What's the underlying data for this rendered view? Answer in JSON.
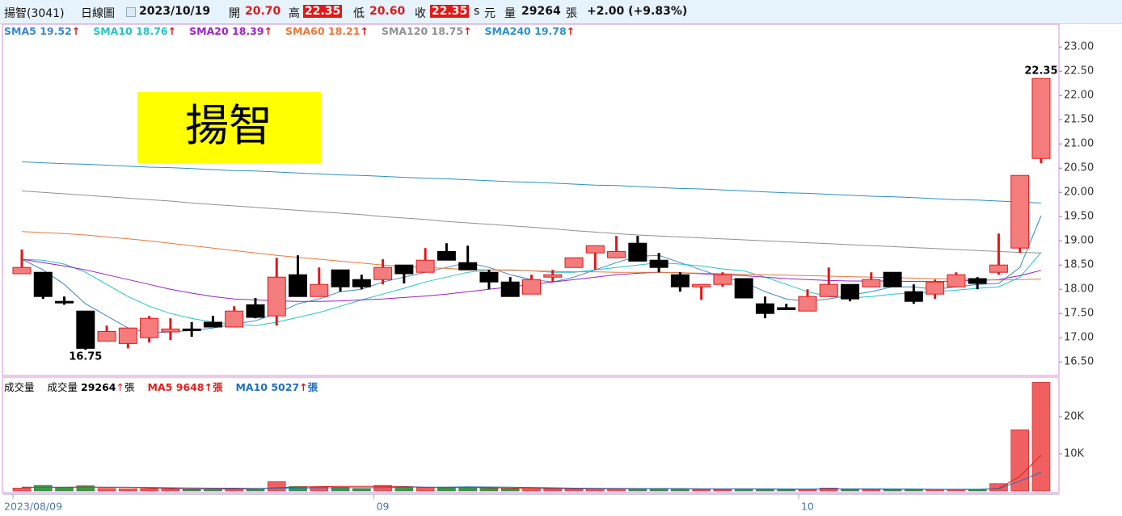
{
  "header": {
    "name": "揚智(3041)",
    "chart_kind": "日線圖",
    "date": "2023/10/19",
    "open_label": "開",
    "open": "20.70",
    "high_label": "高",
    "high": "22.35",
    "low_label": "低",
    "low": "20.60",
    "close_label": "收",
    "close": "22.35",
    "unit_s": "s",
    "unit": "元",
    "volume_label": "量",
    "volume": "29264",
    "volume_unit": "張",
    "change": "+2.00 (+9.83%)"
  },
  "chart_data": [
    {
      "type": "candlestick",
      "annotation": "揚智",
      "legend_arrow": "↑",
      "up_color": "#f47c7c",
      "up_edge": "#e01818",
      "down_color": "#000000",
      "categories": [
        "2023/08/09",
        null,
        null,
        null,
        null,
        null,
        null,
        null,
        null,
        null,
        null,
        null,
        null,
        null,
        null,
        null,
        null,
        "09",
        null,
        null,
        null,
        null,
        null,
        null,
        null,
        null,
        null,
        null,
        null,
        null,
        null,
        null,
        null,
        null,
        null,
        null,
        null,
        "10",
        null,
        null,
        null,
        null,
        null,
        null,
        null,
        null,
        null,
        null,
        null
      ],
      "open": [
        18.32,
        18.35,
        17.75,
        17.55,
        16.93,
        16.88,
        17.0,
        17.12,
        17.18,
        17.32,
        17.22,
        17.68,
        17.45,
        18.3,
        17.85,
        18.4,
        18.2,
        18.2,
        18.5,
        18.35,
        18.78,
        18.55,
        18.35,
        18.15,
        17.9,
        18.25,
        18.45,
        18.75,
        18.65,
        18.95,
        18.6,
        18.3,
        18.05,
        18.1,
        18.22,
        17.7,
        17.62,
        17.55,
        17.85,
        18.1,
        18.05,
        18.35,
        17.95,
        17.9,
        18.05,
        18.22,
        18.35,
        18.85,
        20.7
      ],
      "high": [
        18.82,
        18.35,
        17.85,
        17.55,
        17.25,
        17.2,
        17.45,
        17.4,
        17.32,
        17.45,
        17.65,
        17.82,
        18.65,
        18.7,
        18.45,
        18.4,
        18.3,
        18.62,
        18.5,
        18.85,
        18.95,
        18.9,
        18.4,
        18.25,
        18.3,
        18.4,
        18.65,
        18.9,
        19.1,
        19.1,
        18.75,
        18.35,
        18.1,
        18.35,
        18.22,
        17.85,
        17.7,
        18.0,
        18.45,
        18.1,
        18.35,
        18.35,
        18.1,
        18.2,
        18.35,
        18.25,
        19.15,
        20.35,
        22.35
      ],
      "low": [
        18.32,
        17.8,
        17.68,
        16.75,
        16.93,
        16.78,
        16.9,
        16.95,
        17.02,
        17.22,
        17.22,
        17.4,
        17.25,
        17.85,
        17.85,
        17.95,
        18.0,
        18.1,
        18.12,
        18.35,
        18.6,
        18.4,
        18.0,
        17.85,
        17.9,
        18.15,
        18.45,
        18.4,
        18.65,
        18.58,
        18.35,
        17.95,
        17.78,
        18.05,
        17.82,
        17.4,
        17.58,
        17.55,
        17.85,
        17.75,
        18.05,
        18.05,
        17.7,
        17.8,
        18.05,
        18.0,
        18.3,
        18.75,
        20.6
      ],
      "close": [
        18.45,
        17.85,
        17.72,
        16.78,
        17.13,
        17.2,
        17.4,
        17.18,
        17.15,
        17.22,
        17.55,
        17.42,
        18.25,
        17.85,
        18.1,
        18.05,
        18.05,
        18.45,
        18.32,
        18.6,
        18.6,
        18.4,
        18.15,
        17.85,
        18.2,
        18.3,
        18.65,
        18.9,
        18.78,
        18.58,
        18.45,
        18.05,
        18.1,
        18.3,
        17.82,
        17.5,
        17.58,
        17.85,
        18.1,
        17.8,
        18.2,
        18.05,
        17.75,
        18.15,
        18.3,
        18.12,
        18.5,
        20.35,
        22.35
      ],
      "series": [
        {
          "name": "SMA5",
          "color": "#3a86d0",
          "values": [
            18.62,
            18.4,
            18.1,
            17.7,
            17.45,
            17.2,
            17.1,
            17.12,
            17.15,
            17.2,
            17.28,
            17.35,
            17.5,
            17.7,
            17.8,
            17.95,
            18.0,
            18.15,
            18.25,
            18.35,
            18.45,
            18.55,
            18.45,
            18.3,
            18.2,
            18.15,
            18.25,
            18.4,
            18.55,
            18.68,
            18.7,
            18.55,
            18.4,
            18.25,
            18.15,
            17.95,
            17.8,
            17.75,
            17.8,
            17.88,
            17.95,
            18.05,
            18.05,
            18.0,
            18.05,
            18.1,
            18.12,
            18.45,
            19.52
          ]
        },
        {
          "name": "SMA10",
          "color": "#22c4c4",
          "values": [
            18.62,
            18.6,
            18.52,
            18.35,
            18.1,
            17.85,
            17.65,
            17.5,
            17.4,
            17.32,
            17.28,
            17.25,
            17.32,
            17.42,
            17.52,
            17.65,
            17.78,
            17.9,
            18.02,
            18.15,
            18.25,
            18.35,
            18.4,
            18.4,
            18.38,
            18.35,
            18.35,
            18.4,
            18.45,
            18.5,
            18.55,
            18.52,
            18.48,
            18.42,
            18.38,
            18.25,
            18.1,
            17.95,
            17.85,
            17.82,
            17.85,
            17.9,
            17.92,
            17.95,
            17.98,
            18.02,
            18.05,
            18.25,
            18.76
          ]
        },
        {
          "name": "SMA20",
          "color": "#9b20c8",
          "values": [
            18.62,
            18.55,
            18.48,
            18.4,
            18.3,
            18.2,
            18.1,
            18.0,
            17.92,
            17.85,
            17.8,
            17.78,
            17.76,
            17.75,
            17.75,
            17.76,
            17.78,
            17.8,
            17.83,
            17.86,
            17.9,
            17.95,
            18.0,
            18.05,
            18.1,
            18.15,
            18.2,
            18.25,
            18.3,
            18.33,
            18.35,
            18.34,
            18.32,
            18.3,
            18.28,
            18.25,
            18.22,
            18.2,
            18.18,
            18.17,
            18.17,
            18.17,
            18.16,
            18.16,
            18.17,
            18.18,
            18.2,
            18.28,
            18.39
          ]
        },
        {
          "name": "SMA60",
          "color": "#e8783a",
          "values": [
            19.19,
            19.17,
            19.15,
            19.12,
            19.08,
            19.04,
            19.0,
            18.95,
            18.9,
            18.85,
            18.8,
            18.75,
            18.7,
            18.66,
            18.62,
            18.58,
            18.54,
            18.5,
            18.47,
            18.45,
            18.43,
            18.41,
            18.4,
            18.39,
            18.38,
            18.37,
            18.36,
            18.36,
            18.35,
            18.35,
            18.35,
            18.34,
            18.33,
            18.32,
            18.31,
            18.3,
            18.29,
            18.28,
            18.27,
            18.26,
            18.25,
            18.24,
            18.23,
            18.22,
            18.21,
            18.2,
            18.19,
            18.2,
            18.21
          ]
        },
        {
          "name": "SMA120",
          "color": "#909090",
          "values": [
            20.03,
            20.0,
            19.97,
            19.94,
            19.91,
            19.88,
            19.85,
            19.82,
            19.78,
            19.75,
            19.72,
            19.69,
            19.66,
            19.63,
            19.6,
            19.57,
            19.54,
            19.5,
            19.47,
            19.44,
            19.4,
            19.37,
            19.34,
            19.31,
            19.28,
            19.25,
            19.21,
            19.18,
            19.15,
            19.12,
            19.1,
            19.08,
            19.06,
            19.04,
            19.02,
            19.0,
            18.98,
            18.96,
            18.94,
            18.92,
            18.9,
            18.88,
            18.86,
            18.84,
            18.82,
            18.8,
            18.78,
            18.76,
            18.75
          ]
        },
        {
          "name": "SMA240",
          "color": "#2a8fc8",
          "values": [
            20.63,
            20.61,
            20.59,
            20.58,
            20.56,
            20.54,
            20.52,
            20.51,
            20.49,
            20.47,
            20.45,
            20.44,
            20.42,
            20.4,
            20.38,
            20.36,
            20.35,
            20.33,
            20.31,
            20.29,
            20.28,
            20.26,
            20.24,
            20.22,
            20.21,
            20.19,
            20.17,
            20.15,
            20.14,
            20.12,
            20.1,
            20.08,
            20.07,
            20.05,
            20.03,
            20.01,
            19.99,
            19.98,
            19.96,
            19.94,
            19.92,
            19.91,
            19.89,
            19.87,
            19.85,
            19.84,
            19.82,
            19.8,
            19.78
          ]
        }
      ],
      "ylim": [
        16.22,
        23.47
      ],
      "yticks": [
        {
          "value": 16.5,
          "label": "16.50"
        },
        {
          "value": 17,
          "label": "17.00"
        },
        {
          "value": 17.5,
          "label": "17.50"
        },
        {
          "value": 18,
          "label": "18.00"
        },
        {
          "value": 18.5,
          "label": "18.50"
        },
        {
          "value": 19,
          "label": "19.00"
        },
        {
          "value": 19.5,
          "label": "19.50"
        },
        {
          "value": 20,
          "label": "20.00"
        },
        {
          "value": 20.5,
          "label": "20.50"
        },
        {
          "value": 21,
          "label": "21.00"
        },
        {
          "value": 21.5,
          "label": "21.50"
        },
        {
          "value": 22,
          "label": "22.00"
        },
        {
          "value": 22.5,
          "label": "22.50"
        },
        {
          "value": 23,
          "label": "23.00"
        }
      ]
    },
    {
      "type": "bar",
      "title": "成交量",
      "unit": "張",
      "legend_arrow": "↑",
      "up_color": "#f06060",
      "down_color": "#3a9a48",
      "series": [
        {
          "name": "成交量",
          "color": "#000000",
          "values": [
            800,
            1500,
            900,
            1400,
            700,
            600,
            600,
            500,
            400,
            500,
            600,
            600,
            2500,
            1200,
            1000,
            1000,
            600,
            1500,
            1000,
            900,
            800,
            900,
            700,
            600,
            500,
            500,
            500,
            700,
            500,
            700,
            700,
            500,
            400,
            400,
            600,
            500,
            400,
            400,
            800,
            400,
            400,
            400,
            400,
            400,
            400,
            300,
            2000,
            16500,
            29264
          ]
        },
        {
          "name": "MA5",
          "color": "#e02020",
          "values": [
            1000,
            1000,
            1000,
            1100,
            1000,
            1000,
            800,
            650,
            550,
            520,
            520,
            540,
            900,
            1050,
            1180,
            1260,
            1260,
            1260,
            1220,
            1000,
            960,
            960,
            860,
            780,
            700,
            620,
            560,
            560,
            580,
            580,
            620,
            620,
            560,
            540,
            540,
            520,
            460,
            460,
            540,
            540,
            500,
            480,
            480,
            400,
            400,
            380,
            700,
            3920,
            9648
          ]
        },
        {
          "name": "MA10",
          "color": "#2070c0",
          "values": [
            1000,
            1000,
            1000,
            1000,
            1000,
            1000,
            950,
            880,
            820,
            760,
            760,
            670,
            720,
            780,
            830,
            890,
            900,
            900,
            1060,
            1020,
            1040,
            1110,
            1060,
            1020,
            960,
            870,
            760,
            710,
            670,
            640,
            620,
            590,
            580,
            560,
            560,
            570,
            540,
            510,
            560,
            560,
            560,
            550,
            520,
            470,
            470,
            450,
            580,
            2680,
            5027
          ]
        }
      ],
      "ylim": [
        0,
        30000
      ],
      "yticks": [
        {
          "value": 10000,
          "label": "10K"
        },
        {
          "value": 20000,
          "label": "20K"
        }
      ]
    }
  ]
}
